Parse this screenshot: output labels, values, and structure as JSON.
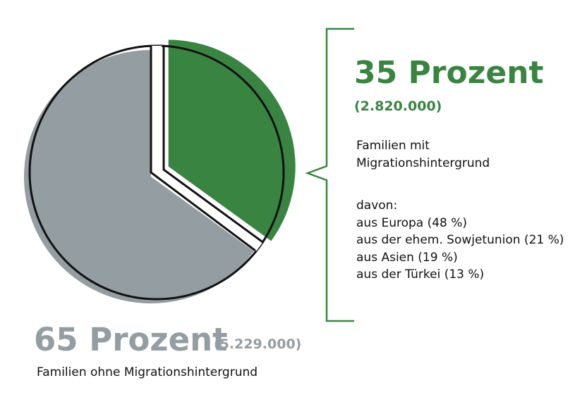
{
  "chart_data": {
    "type": "pie",
    "slices": [
      {
        "label": "Familien mit Migrationshintergrund",
        "percent": 35,
        "count": "2.820.000",
        "color": "#3a8442"
      },
      {
        "label": "Familien ohne Migrationshintergrund",
        "percent": 65,
        "count": "5.229.000",
        "color": "#949da1"
      }
    ],
    "legend_placement": "right and bottom"
  },
  "with_migration": {
    "percent_text": "35 Prozent",
    "count_text": "(2.820.000)",
    "label_line1": "Familien mit",
    "label_line2": "Migrationshintergrund",
    "breakdown_title": "davon:",
    "breakdown": [
      "aus Europa (48 %)",
      "aus der ehem. Sowjetunion (21 %)",
      "aus Asien (19 %)",
      "aus der Türkei (13 %)"
    ]
  },
  "without_migration": {
    "percent_text": "65 Prozent",
    "count_text": "(5.229.000)",
    "label": "Familien ohne Migrationshintergrund"
  },
  "colors": {
    "green": "#3a8442",
    "grey": "#949da1",
    "outline": "#111111"
  }
}
